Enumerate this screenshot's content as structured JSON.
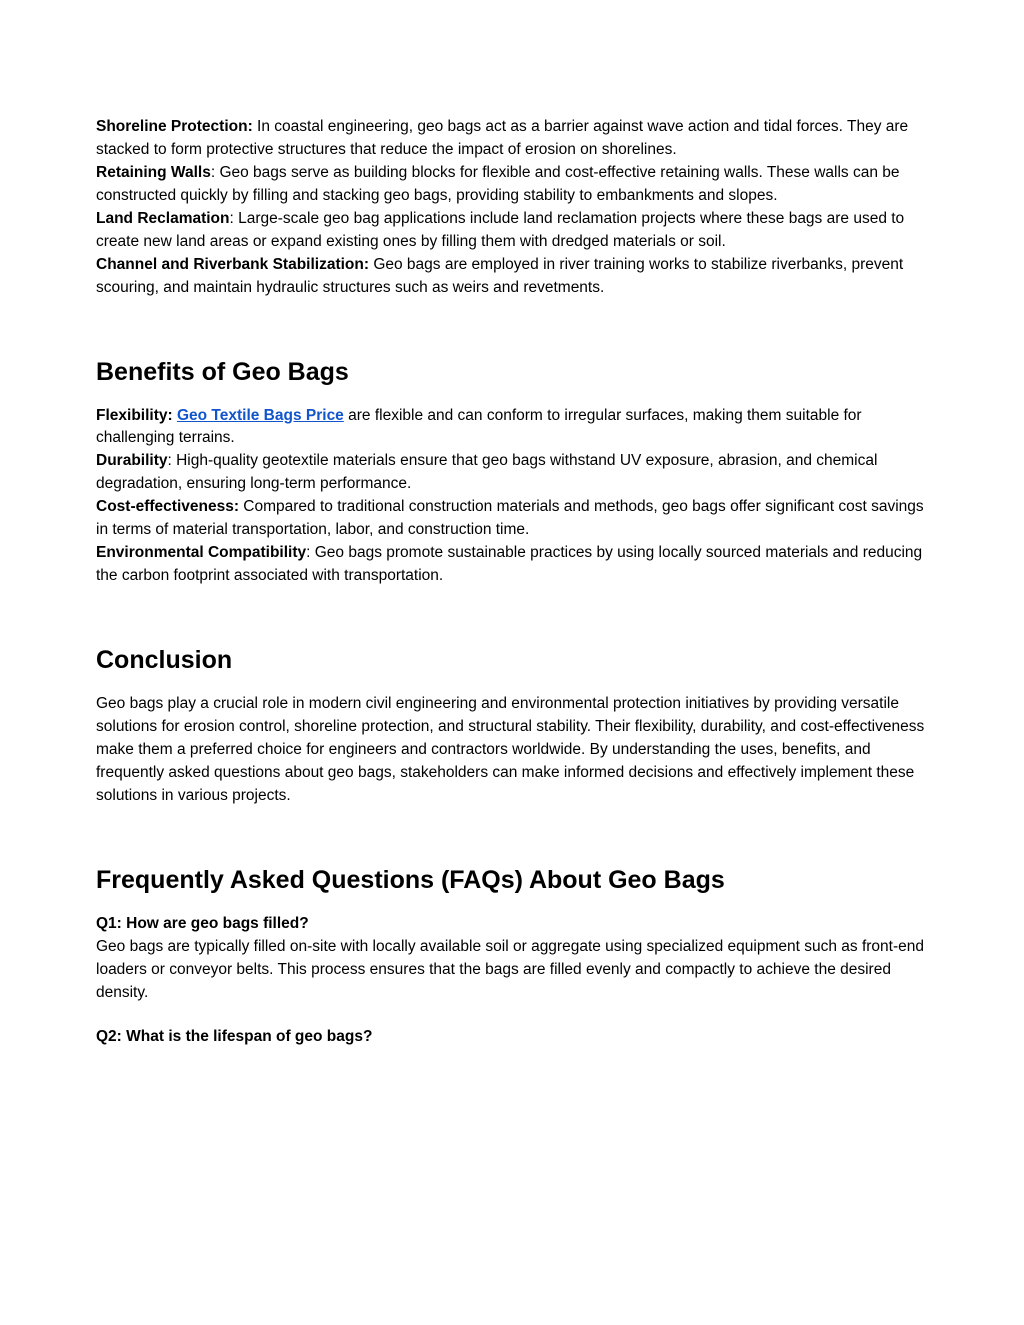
{
  "intro": {
    "items": [
      {
        "label": "Shoreline Protection:",
        "text": " In coastal engineering, geo bags act as a barrier against wave action and tidal forces. They are stacked to form protective structures that reduce the impact of erosion on shorelines."
      },
      {
        "label": "Retaining Walls",
        "text": ": Geo bags serve as building blocks for flexible and cost-effective retaining walls. These walls can be constructed quickly by filling and stacking geo bags, providing stability to embankments and slopes."
      },
      {
        "label": "Land Reclamation",
        "text": ": Large-scale geo bag applications include land reclamation projects where these bags are used to create new land areas or expand existing ones by filling them with dredged materials or soil."
      },
      {
        "label": "Channel and Riverbank Stabilization:",
        "text": " Geo bags are employed in river training works to stabilize riverbanks, prevent scouring, and maintain hydraulic structures such as weirs and revetments."
      }
    ]
  },
  "benefits": {
    "heading": "Benefits of Geo Bags",
    "flex_label": "Flexibility: ",
    "flex_link": "Geo Textile Bags Price",
    "flex_text": " are flexible and can conform to irregular surfaces, making them suitable for challenging terrains.",
    "items": [
      {
        "label": "Durability",
        "text": ": High-quality geotextile materials ensure that geo bags withstand UV exposure, abrasion, and chemical degradation, ensuring long-term performance."
      },
      {
        "label": "Cost-effectiveness:",
        "text": " Compared to traditional construction materials and methods, geo bags offer significant cost savings in terms of material transportation, labor, and construction time."
      },
      {
        "label": "Environmental Compatibility",
        "text": ": Geo bags promote sustainable practices by using locally sourced materials and reducing the carbon footprint associated with transportation."
      }
    ]
  },
  "conclusion": {
    "heading": "Conclusion",
    "text": "Geo bags play a crucial role in modern civil engineering and environmental protection initiatives by providing versatile solutions for erosion control, shoreline protection, and structural stability. Their flexibility, durability, and cost-effectiveness make them a preferred choice for engineers and contractors worldwide. By understanding the uses, benefits, and frequently asked questions about geo bags, stakeholders can make informed decisions and effectively implement these solutions in various projects."
  },
  "faq": {
    "heading": "Frequently Asked Questions (FAQs) About Geo Bags",
    "q1_title": "Q1: How are geo bags filled?",
    "q1_text": "Geo bags are typically filled on-site with locally available soil or aggregate using specialized equipment such as front-end loaders or conveyor belts. This process ensures that the bags are filled evenly and compactly to achieve the desired density.",
    "q2_title": "Q2: What is the lifespan of geo bags?"
  }
}
